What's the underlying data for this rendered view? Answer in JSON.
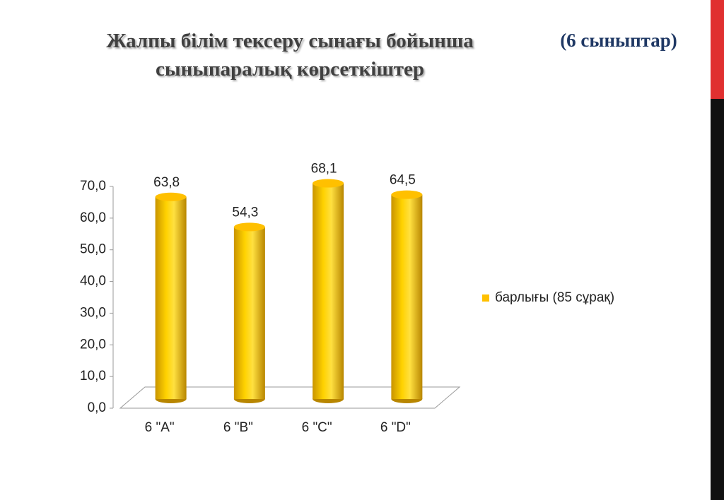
{
  "chart_data": {
    "type": "bar",
    "title": "Жалпы білім тексеру сынағы бойынша сыныпаралық көрсеткіштер",
    "subtitle": "(6 сыныптар)",
    "categories": [
      "6 \"A\"",
      "6 \"B\"",
      "6 \"C\"",
      "6 \"D\""
    ],
    "series": [
      {
        "name": "барлығы (85 сұрақ)",
        "color": "#ffc000",
        "values": [
          63.8,
          54.3,
          68.1,
          64.5
        ],
        "value_labels": [
          "63,8",
          "54,3",
          "68,1",
          "64,5"
        ]
      }
    ],
    "ylim": [
      0,
      70
    ],
    "yticks": [
      {
        "value": 0,
        "label": "0,0"
      },
      {
        "value": 10,
        "label": "10,0"
      },
      {
        "value": 20,
        "label": "20,0"
      },
      {
        "value": 30,
        "label": "30,0"
      },
      {
        "value": 40,
        "label": "40,0"
      },
      {
        "value": 50,
        "label": "50,0"
      },
      {
        "value": 60,
        "label": "60,0"
      },
      {
        "value": 70,
        "label": "70,0"
      }
    ],
    "legend": "right"
  }
}
